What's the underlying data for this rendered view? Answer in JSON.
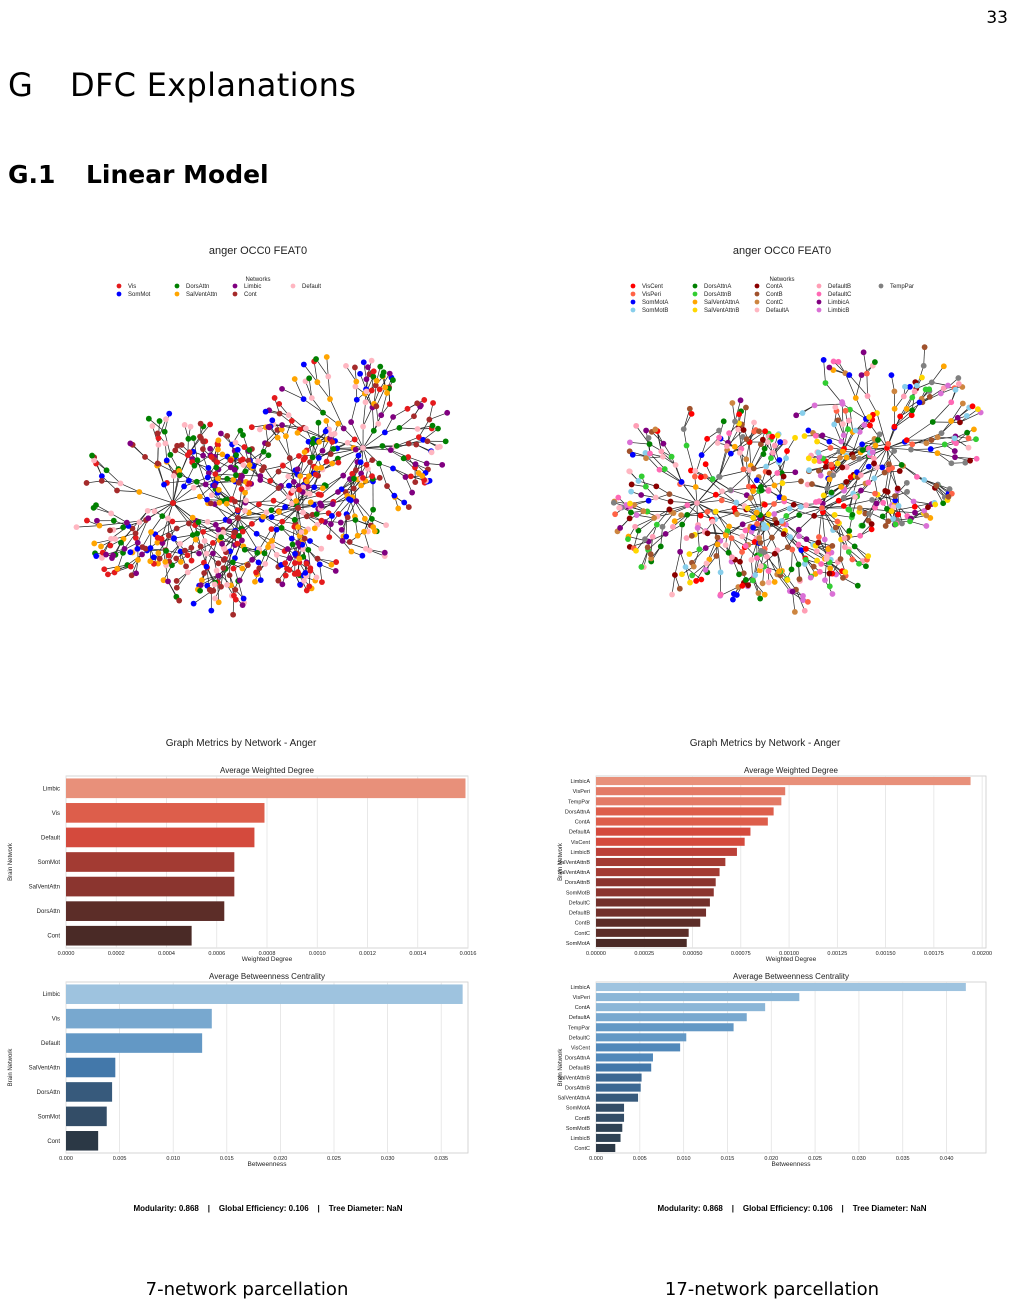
{
  "page_number": "33",
  "section": {
    "number": "G",
    "title": "DFC Explanations"
  },
  "subsection": {
    "number": "G.1",
    "title": "Linear Model"
  },
  "panels": [
    {
      "caption": "7-network parcellation",
      "graph_title": "anger OCC0 FEAT0",
      "legend_title": "Networks",
      "legend": [
        {
          "name": "Vis",
          "color": "#e41a1c"
        },
        {
          "name": "SomMot",
          "color": "#0000ff"
        },
        {
          "name": "DorsAttn",
          "color": "#008000"
        },
        {
          "name": "SalVentAttn",
          "color": "#ffa500"
        },
        {
          "name": "Limbic",
          "color": "#800080"
        },
        {
          "name": "Cont",
          "color": "#a52a2a"
        },
        {
          "name": "Default",
          "color": "#ffb6c1"
        }
      ],
      "metrics_title": "Graph Metrics by Network - Anger",
      "metrics_line": "Modularity: 0.868    |    Global Efficiency: 0.106    |    Tree Diameter: NaN"
    },
    {
      "caption": "17-network parcellation",
      "graph_title": "anger OCC0 FEAT0",
      "legend_title": "Networks",
      "legend": [
        {
          "name": "VisCent",
          "color": "#ff0000"
        },
        {
          "name": "VisPeri",
          "color": "#ff6347"
        },
        {
          "name": "SomMotA",
          "color": "#0000ff"
        },
        {
          "name": "SomMotB",
          "color": "#87ceeb"
        },
        {
          "name": "DorsAttnA",
          "color": "#008000"
        },
        {
          "name": "DorsAttnB",
          "color": "#32cd32"
        },
        {
          "name": "SalVentAttnA",
          "color": "#ffa500"
        },
        {
          "name": "SalVentAttnB",
          "color": "#ffd700"
        },
        {
          "name": "ContA",
          "color": "#8b0000"
        },
        {
          "name": "ContB",
          "color": "#a0522d"
        },
        {
          "name": "ContC",
          "color": "#cd853f"
        },
        {
          "name": "DefaultA",
          "color": "#ffb6c1"
        },
        {
          "name": "DefaultB",
          "color": "#ff9eb5"
        },
        {
          "name": "DefaultC",
          "color": "#ff69b4"
        },
        {
          "name": "LimbicA",
          "color": "#800080"
        },
        {
          "name": "LimbicB",
          "color": "#da70d6"
        },
        {
          "name": "TempPar",
          "color": "#808080"
        }
      ],
      "metrics_title": "Graph Metrics by Network - Anger",
      "metrics_line": "Modularity: 0.868    |    Global Efficiency: 0.106    |    Tree Diameter: NaN"
    }
  ],
  "chart_data": [
    {
      "type": "bar",
      "orientation": "horizontal",
      "title": "Average Weighted Degree",
      "xlabel": "Weighted Degree",
      "ylabel": "Brain Network",
      "categories": [
        "Limbic",
        "Vis",
        "Default",
        "SomMot",
        "SalVentAttn",
        "DorsAttn",
        "Cont"
      ],
      "values": [
        0.00159,
        0.00079,
        0.00075,
        0.00067,
        0.00067,
        0.00063,
        0.0005
      ],
      "xlim": [
        0,
        0.0016
      ],
      "xticks": [
        "0.0000",
        "0.0002",
        "0.0004",
        "0.0006",
        "0.0008",
        "0.0010",
        "0.0012",
        "0.0014",
        "0.0016"
      ],
      "palette": "reds",
      "grid": true
    },
    {
      "type": "bar",
      "orientation": "horizontal",
      "title": "Average Betweenness Centrality",
      "xlabel": "Betweenness",
      "ylabel": "Brain Network",
      "categories": [
        "Limbic",
        "Vis",
        "Default",
        "SalVentAttn",
        "DorsAttn",
        "SomMot",
        "Cont"
      ],
      "values": [
        0.037,
        0.0136,
        0.0127,
        0.0046,
        0.0043,
        0.0038,
        0.003
      ],
      "xlim": [
        0,
        0.0375
      ],
      "xticks": [
        "0.000",
        "0.005",
        "0.010",
        "0.015",
        "0.020",
        "0.025",
        "0.030",
        "0.035"
      ],
      "palette": "blues",
      "grid": true
    },
    {
      "type": "bar",
      "orientation": "horizontal",
      "title": "Average Weighted Degree",
      "xlabel": "Weighted Degree",
      "ylabel": "Brain Network",
      "categories": [
        "LimbicA",
        "VisPeri",
        "TempPar",
        "DorsAttnA",
        "ContA",
        "DefaultA",
        "VisCent",
        "LimbicB",
        "SalVentAttnB",
        "SalVentAttnA",
        "DorsAttnB",
        "SomMotB",
        "DefaultC",
        "DefaultB",
        "ContB",
        "ContC",
        "SomMotA"
      ],
      "values": [
        0.00194,
        0.00098,
        0.00096,
        0.00092,
        0.00089,
        0.0008,
        0.00077,
        0.00073,
        0.00067,
        0.00064,
        0.00062,
        0.00061,
        0.00059,
        0.00057,
        0.00054,
        0.00048,
        0.00047
      ],
      "xlim": [
        0,
        0.00202
      ],
      "xticks": [
        "0.00000",
        "0.00025",
        "0.00050",
        "0.00075",
        "0.00100",
        "0.00125",
        "0.00150",
        "0.00175",
        "0.00200"
      ],
      "palette": "reds",
      "grid": true
    },
    {
      "type": "bar",
      "orientation": "horizontal",
      "title": "Average Betweenness Centrality",
      "xlabel": "Betweenness",
      "ylabel": "Brain Network",
      "categories": [
        "LimbicA",
        "VisPeri",
        "ContA",
        "DefaultA",
        "TempPar",
        "DefaultC",
        "VisCent",
        "DorsAttnA",
        "DefaultB",
        "SalVentAttnB",
        "DorsAttnB",
        "SalVentAttnA",
        "SomMotA",
        "ContB",
        "SomMotB",
        "LimbicB",
        "ContC"
      ],
      "values": [
        0.0422,
        0.0232,
        0.0193,
        0.0172,
        0.0157,
        0.0103,
        0.0096,
        0.0065,
        0.0063,
        0.0052,
        0.0051,
        0.0048,
        0.0032,
        0.0032,
        0.003,
        0.0028,
        0.0022
      ],
      "xlim": [
        0,
        0.0445
      ],
      "xticks": [
        "0.000",
        "0.005",
        "0.010",
        "0.015",
        "0.020",
        "0.025",
        "0.030",
        "0.035",
        "0.040"
      ],
      "palette": "blues",
      "grid": true
    }
  ]
}
